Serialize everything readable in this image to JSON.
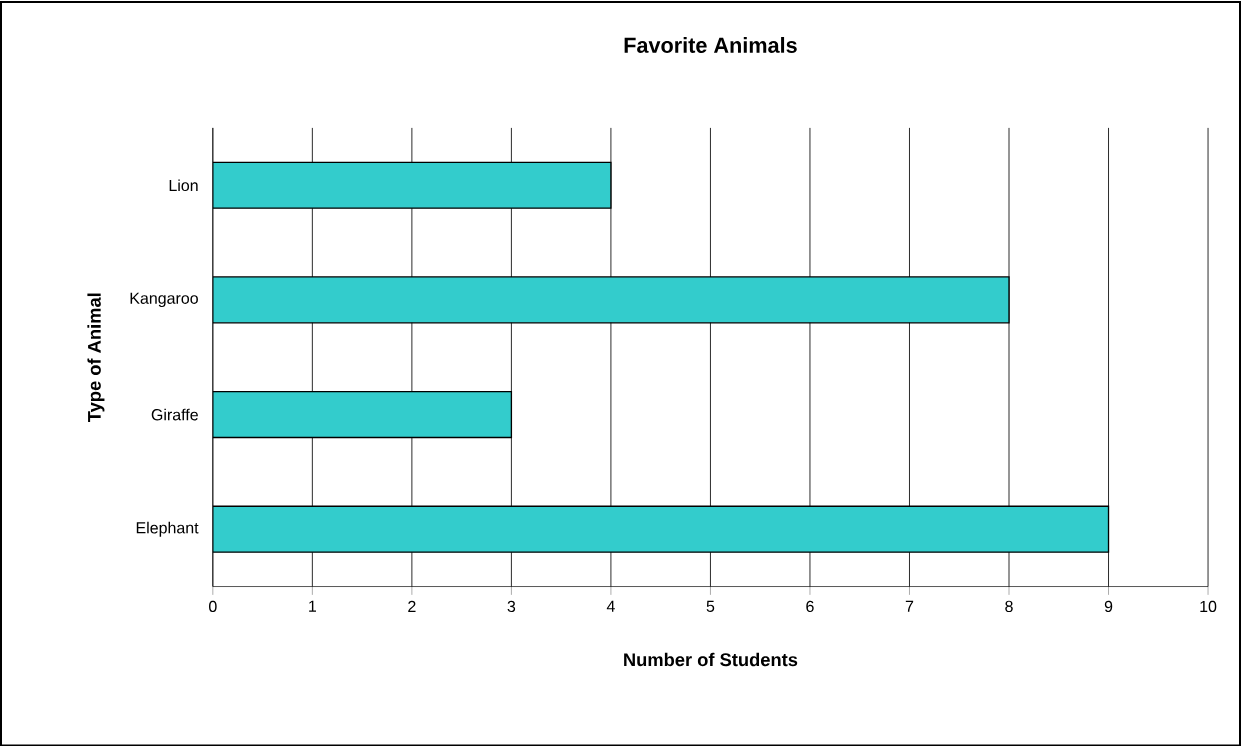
{
  "chart_data": {
    "type": "bar",
    "orientation": "horizontal",
    "title": "Favorite Animals",
    "xlabel": "Number of Students",
    "ylabel": "Type of Animal",
    "categories": [
      "Lion",
      "Kangaroo",
      "Giraffe",
      "Elephant"
    ],
    "values": [
      4,
      8,
      3,
      9
    ],
    "color": "#33cccc",
    "xlim": [
      0,
      10
    ],
    "xticks": [
      0,
      1,
      2,
      3,
      4,
      5,
      6,
      7,
      8,
      9,
      10
    ],
    "grid": "x"
  }
}
